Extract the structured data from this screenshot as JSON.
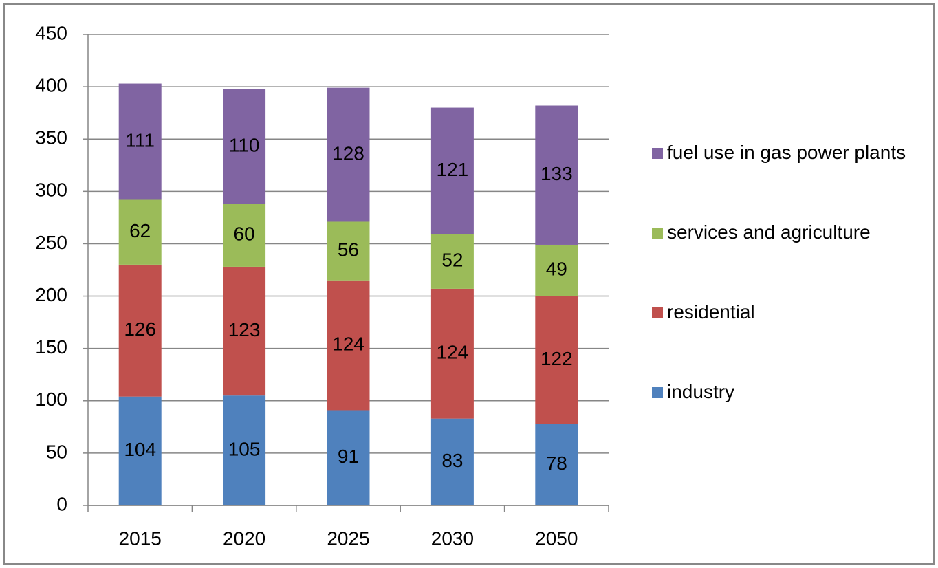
{
  "chart_data": {
    "type": "stacked-bar",
    "categories": [
      "2015",
      "2020",
      "2025",
      "2030",
      "2050"
    ],
    "series": [
      {
        "name": "industry",
        "color": "#4f81bd",
        "values": [
          104,
          105,
          91,
          83,
          78
        ]
      },
      {
        "name": "residential",
        "color": "#c0504d",
        "values": [
          126,
          123,
          124,
          124,
          122
        ]
      },
      {
        "name": "services and agriculture",
        "color": "#9bbb59",
        "values": [
          62,
          60,
          56,
          52,
          49
        ]
      },
      {
        "name": "fuel use in gas power plants",
        "color": "#8064a2",
        "values": [
          111,
          110,
          128,
          121,
          133
        ]
      }
    ],
    "ylim": [
      0,
      450
    ],
    "yticks": [
      0,
      50,
      100,
      150,
      200,
      250,
      300,
      350,
      400,
      450
    ],
    "grid": true,
    "legend": "right"
  }
}
